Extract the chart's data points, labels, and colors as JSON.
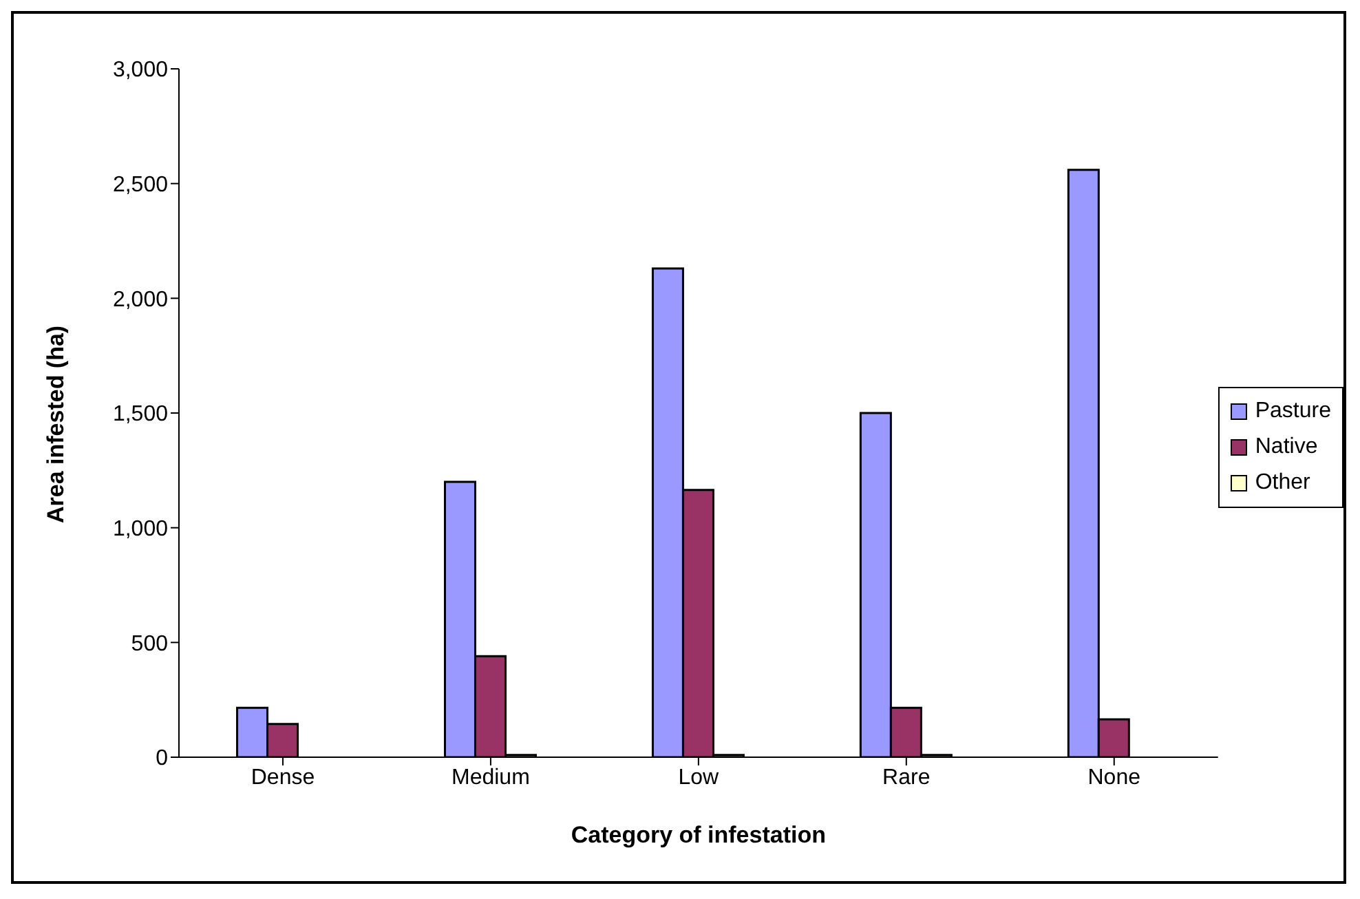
{
  "chart_data": {
    "type": "bar",
    "xlabel": "Category of infestation",
    "ylabel": "Area infested (ha)",
    "categories": [
      "Dense",
      "Medium",
      "Low",
      "Rare",
      "None"
    ],
    "series": [
      {
        "name": "Pasture",
        "color": "#9999ff",
        "values": [
          215,
          1200,
          2130,
          1500,
          2560
        ]
      },
      {
        "name": "Native",
        "color": "#993366",
        "values": [
          145,
          440,
          1165,
          215,
          165
        ]
      },
      {
        "name": "Other",
        "color": "#ffffcc",
        "values": [
          0,
          10,
          10,
          10,
          0
        ]
      }
    ],
    "ylim": [
      0,
      3000
    ],
    "yticks": [
      0,
      500,
      {
        "value": 1000,
        "label": "1,000"
      },
      {
        "value": 1500,
        "label": "1,500"
      },
      {
        "value": 2000,
        "label": "2,000"
      },
      {
        "value": 2500,
        "label": "2,500"
      },
      {
        "value": 3000,
        "label": "3,000"
      }
    ],
    "grid": false,
    "legend": "right"
  }
}
